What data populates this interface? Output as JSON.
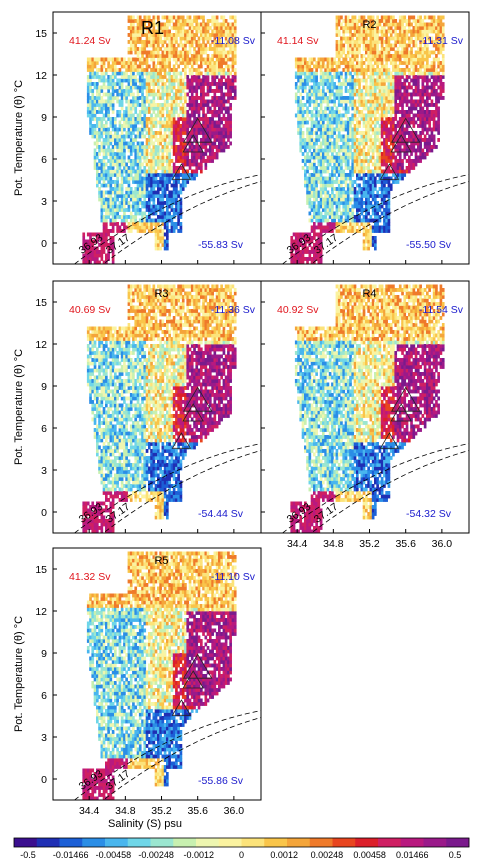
{
  "chart_data": {
    "type": "heatmap",
    "xlabel": "Salinity (S) psu",
    "ylabel": "Pot. Temperature (θ) °C",
    "xlim": [
      34.0,
      36.3
    ],
    "ylim": [
      -1.5,
      16.5
    ],
    "xticks": [
      "34.4",
      "34.8",
      "35.2",
      "35.6",
      "36.0"
    ],
    "yticks": [
      "0",
      "3",
      "6",
      "9",
      "12",
      "15"
    ],
    "density_contours": [
      "36.93",
      "37.17"
    ],
    "panels": [
      {
        "title": "R1",
        "top_left": "41.24 Sv",
        "top_right": "-11.08 Sv",
        "bottom_right": "-55.83 Sv"
      },
      {
        "title": "R2",
        "top_left": "41.14 Sv",
        "top_right": "-11.31 Sv",
        "bottom_right": "-55.50 Sv"
      },
      {
        "title": "R3",
        "top_left": "40.69 Sv",
        "top_right": "-11.36 Sv",
        "bottom_right": "-54.44 Sv"
      },
      {
        "title": "R4",
        "top_left": "40.92 Sv",
        "top_right": "-11.54 Sv",
        "bottom_right": "-54.32 Sv"
      },
      {
        "title": "R5",
        "top_left": "41.32 Sv",
        "top_right": "-11.10 Sv",
        "bottom_right": "-55.86 Sv"
      }
    ],
    "colorbar": {
      "labels": [
        "-0.5",
        "-0.01466",
        "-0.00458",
        "-0.00248",
        "-0.0012",
        "0",
        "0.0012",
        "0.00248",
        "0.00458",
        "0.01466",
        "0.5"
      ],
      "colors": [
        "#3b0f8f",
        "#1f2fb4",
        "#1c5fd6",
        "#2b8ee6",
        "#49b6ee",
        "#6fd6e8",
        "#9be6d0",
        "#c8f0b0",
        "#eef6b0",
        "#fbf3a0",
        "#fce37a",
        "#f9c54a",
        "#f4a53a",
        "#ef7a2a",
        "#e8451f",
        "#dc1f2a",
        "#cf1f63",
        "#b8197f",
        "#9a1a8a",
        "#7a1a8c"
      ]
    },
    "grid": false,
    "colors": {
      "positive_label": "#e0141c",
      "negative_label": "#1a1acc"
    }
  }
}
